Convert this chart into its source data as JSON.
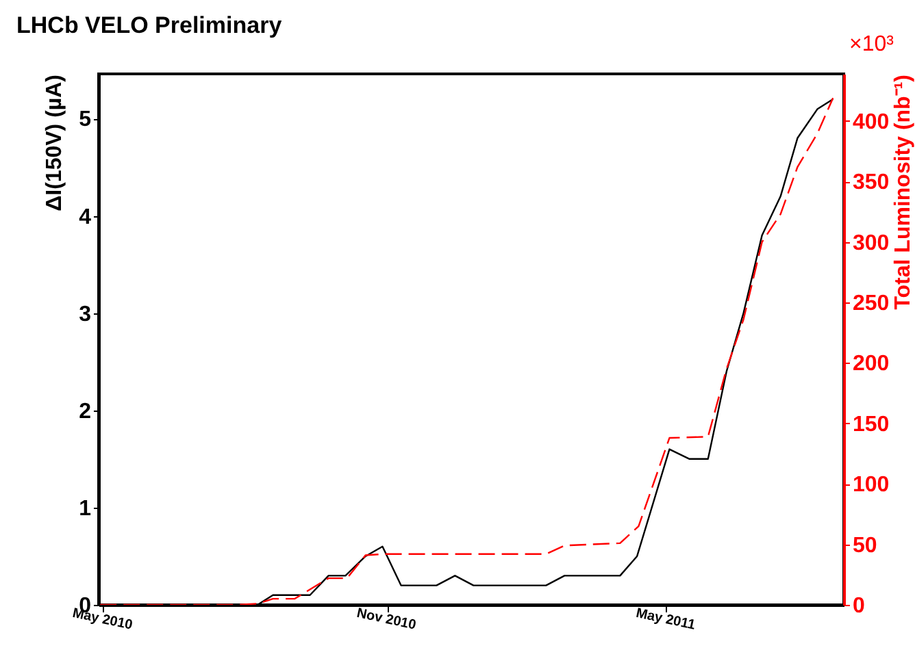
{
  "chart_data": {
    "type": "line",
    "title": "LHCb VELO Preliminary",
    "ylabel": "ΔI(150V) (µA)",
    "y2label": "Total Luminosity (nb⁻¹)",
    "xlim": [
      "2010-04-28",
      "2011-08-24"
    ],
    "xticks": [
      {
        "value": "2010-05-01",
        "label": "May 2010"
      },
      {
        "value": "2010-11-01",
        "label": "Nov 2010"
      },
      {
        "value": "2011-05-01",
        "label": "May 2011"
      }
    ],
    "ylim": [
      0,
      5.46
    ],
    "yticks": [
      0,
      1,
      2,
      3,
      4,
      5
    ],
    "annotations": [
      "×10³"
    ],
    "y2lim": [
      0,
      439
    ],
    "y2ticks": [
      0,
      50,
      100,
      150,
      200,
      250,
      300,
      350,
      400
    ],
    "grid": false,
    "legend": false,
    "marker": "none",
    "series": [
      {
        "color": "#000000",
        "line_style": "solid",
        "x": [
          "2010-04-29",
          "2010-08-09",
          "2010-08-19",
          "2010-09-12",
          "2010-09-24",
          "2010-10-05",
          "2010-10-18",
          "2010-10-29",
          "2010-11-10",
          "2010-12-03",
          "2010-12-15",
          "2010-12-27",
          "2011-02-12",
          "2011-02-24",
          "2011-04-01",
          "2011-04-12",
          "2011-05-03",
          "2011-05-16",
          "2011-05-28",
          "2011-06-09",
          "2011-06-20",
          "2011-07-02",
          "2011-07-14",
          "2011-07-25",
          "2011-08-07",
          "2011-08-17"
        ],
        "values": [
          0,
          0,
          0.1,
          0.1,
          0.3,
          0.3,
          0.5,
          0.6,
          0.2,
          0.2,
          0.3,
          0.2,
          0.2,
          0.3,
          0.3,
          0.5,
          1.6,
          1.5,
          1.5,
          2.4,
          3.0,
          3.8,
          4.2,
          4.8,
          5.1,
          5.2
        ]
      },
      {
        "color": "#ff0000",
        "line_style": "dashed",
        "axis": "y2",
        "x": [
          "2010-04-29",
          "2010-07-27",
          "2010-08-09",
          "2010-08-19",
          "2010-09-02",
          "2010-09-24",
          "2010-10-06",
          "2010-10-18",
          "2010-10-29",
          "2011-02-12",
          "2011-02-24",
          "2011-04-01",
          "2011-04-13",
          "2011-05-03",
          "2011-05-28",
          "2011-06-09",
          "2011-06-20",
          "2011-07-02",
          "2011-07-14",
          "2011-07-25",
          "2011-08-07",
          "2011-08-17"
        ],
        "values": [
          0,
          0,
          1,
          5,
          5,
          22,
          22,
          41,
          42,
          42,
          49,
          51,
          65,
          138,
          139,
          195,
          236,
          300,
          323,
          362,
          390,
          419
        ]
      }
    ]
  }
}
